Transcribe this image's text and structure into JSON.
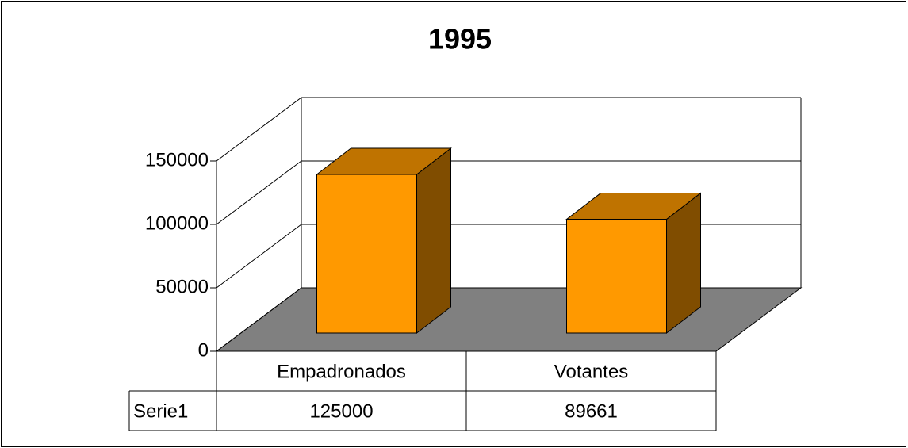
{
  "chart_data": {
    "type": "bar3d",
    "title": "1995",
    "categories": [
      "Empadronados",
      "Votantes"
    ],
    "series": [
      {
        "name": "Serie1",
        "color": "#ff9900",
        "values": [
          125000,
          89661
        ]
      }
    ],
    "ylim": [
      0,
      150000
    ],
    "yticks": [
      0,
      50000,
      100000,
      150000
    ],
    "grid": true,
    "data_table": true
  }
}
